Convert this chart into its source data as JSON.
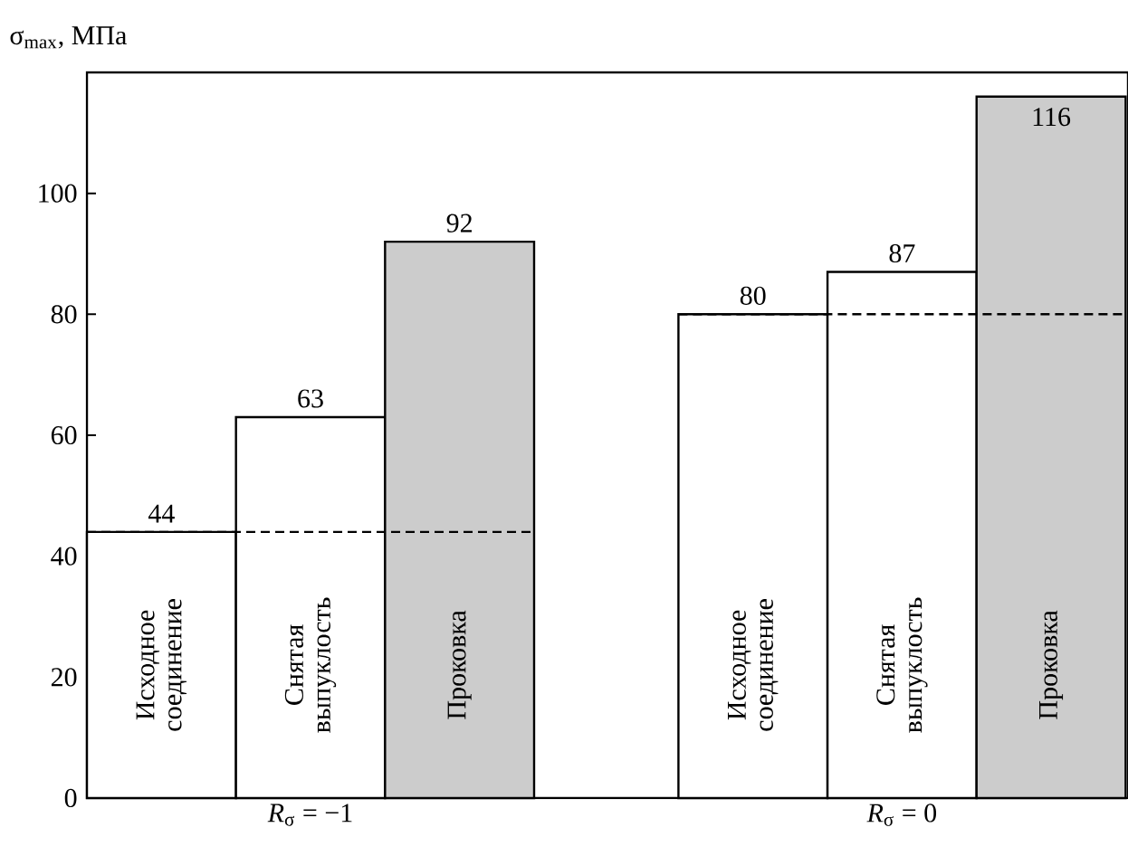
{
  "chart_data": {
    "type": "bar",
    "ylabel": "σ$_{max}$, МПа",
    "categories": [
      "*R*$_{σ}$ = −1",
      "*R*$_{σ}$ = 0"
    ],
    "series": [
      {
        "name": "Исходное соединение",
        "color": "#ffffff",
        "values": [
          44,
          80
        ]
      },
      {
        "name": "Снятая выпуклость",
        "color": "#ffffff",
        "values": [
          63,
          87
        ]
      },
      {
        "name": "Проковка",
        "color": "#cccccc",
        "values": [
          92,
          116
        ]
      }
    ],
    "ylim": [
      0,
      120
    ],
    "yticks": [
      0,
      20,
      40,
      60,
      80,
      100
    ],
    "ref_lines": [
      {
        "axis": "y",
        "value": 44,
        "line_style": "dashed",
        "color": "#000000"
      },
      {
        "axis": "y",
        "value": 80,
        "line_style": "dashed",
        "color": "#000000"
      }
    ],
    "data_labels": true
  }
}
